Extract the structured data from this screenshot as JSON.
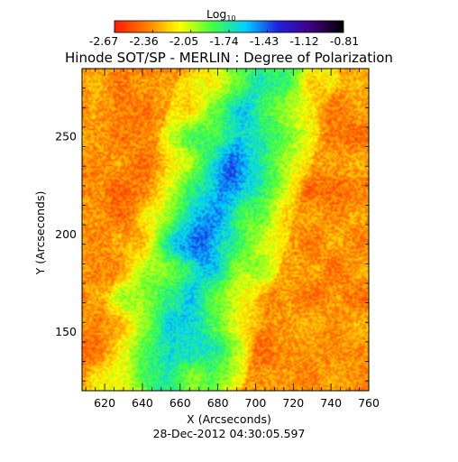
{
  "chart_data": {
    "type": "heatmap",
    "title": "Hinode SOT/SP - MERLIN : Degree of Polarization",
    "subtitle": "28-Dec-2012 04:30:05.597",
    "xlabel": "X (Arcseconds)",
    "ylabel": "Y (Arcseconds)",
    "xlim": [
      608,
      760
    ],
    "ylim": [
      120,
      285
    ],
    "x_ticks": [
      {
        "value": 620,
        "label": "620"
      },
      {
        "value": 640,
        "label": "640"
      },
      {
        "value": 660,
        "label": "660"
      },
      {
        "value": 680,
        "label": "680"
      },
      {
        "value": 700,
        "label": "700"
      },
      {
        "value": 720,
        "label": "720"
      },
      {
        "value": 740,
        "label": "740"
      },
      {
        "value": 760,
        "label": "760"
      }
    ],
    "y_ticks": [
      {
        "value": 150,
        "label": "150"
      },
      {
        "value": 200,
        "label": "200"
      },
      {
        "value": 250,
        "label": "250"
      }
    ],
    "colorbar": {
      "label_main": "Log",
      "label_sub": "10",
      "range": [
        -2.67,
        -0.81
      ],
      "ticks": [
        "-2.67",
        "-2.36",
        "-2.05",
        "-1.74",
        "-1.43",
        "-1.12",
        "-0.81"
      ],
      "colors": [
        "#ff1a00",
        "#ff8000",
        "#ffff00",
        "#40ff40",
        "#00d0ff",
        "#2020e0",
        "#400080",
        "#000000"
      ]
    }
  }
}
